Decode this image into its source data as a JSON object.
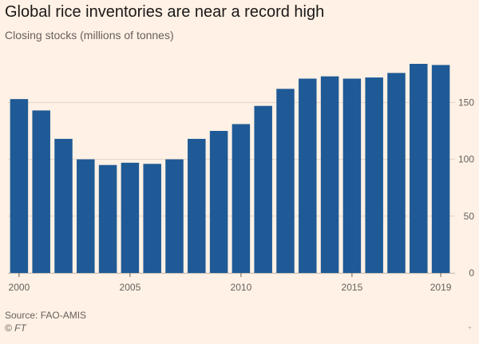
{
  "title": "Global rice inventories are near a record high",
  "subtitle": "Closing stocks (millions of tonnes)",
  "source": "Source: FAO-AMIS",
  "credit": "© FT",
  "corner_mark": "+",
  "chart_data": {
    "type": "bar",
    "categories": [
      "2000",
      "2001",
      "2002",
      "2003",
      "2004",
      "2005",
      "2006",
      "2007",
      "2008",
      "2009",
      "2010",
      "2011",
      "2012",
      "2013",
      "2014",
      "2015",
      "2016",
      "2017",
      "2018",
      "2019"
    ],
    "values": [
      153,
      143,
      118,
      100,
      95,
      97,
      96,
      100,
      118,
      125,
      131,
      147,
      162,
      171,
      173,
      171,
      172,
      176,
      184,
      183
    ],
    "xlabel": "",
    "ylabel": "",
    "ylim": [
      0,
      184
    ],
    "yticks": [
      0,
      50,
      100,
      150
    ],
    "xtick_labels": [
      "2000",
      "2005",
      "2010",
      "2015",
      "2019"
    ],
    "grid": "horizontal",
    "y_axis_side": "right",
    "bar_color": "#1f5a96",
    "grid_color": "#e0d5ca",
    "background": "#fff1e5"
  }
}
